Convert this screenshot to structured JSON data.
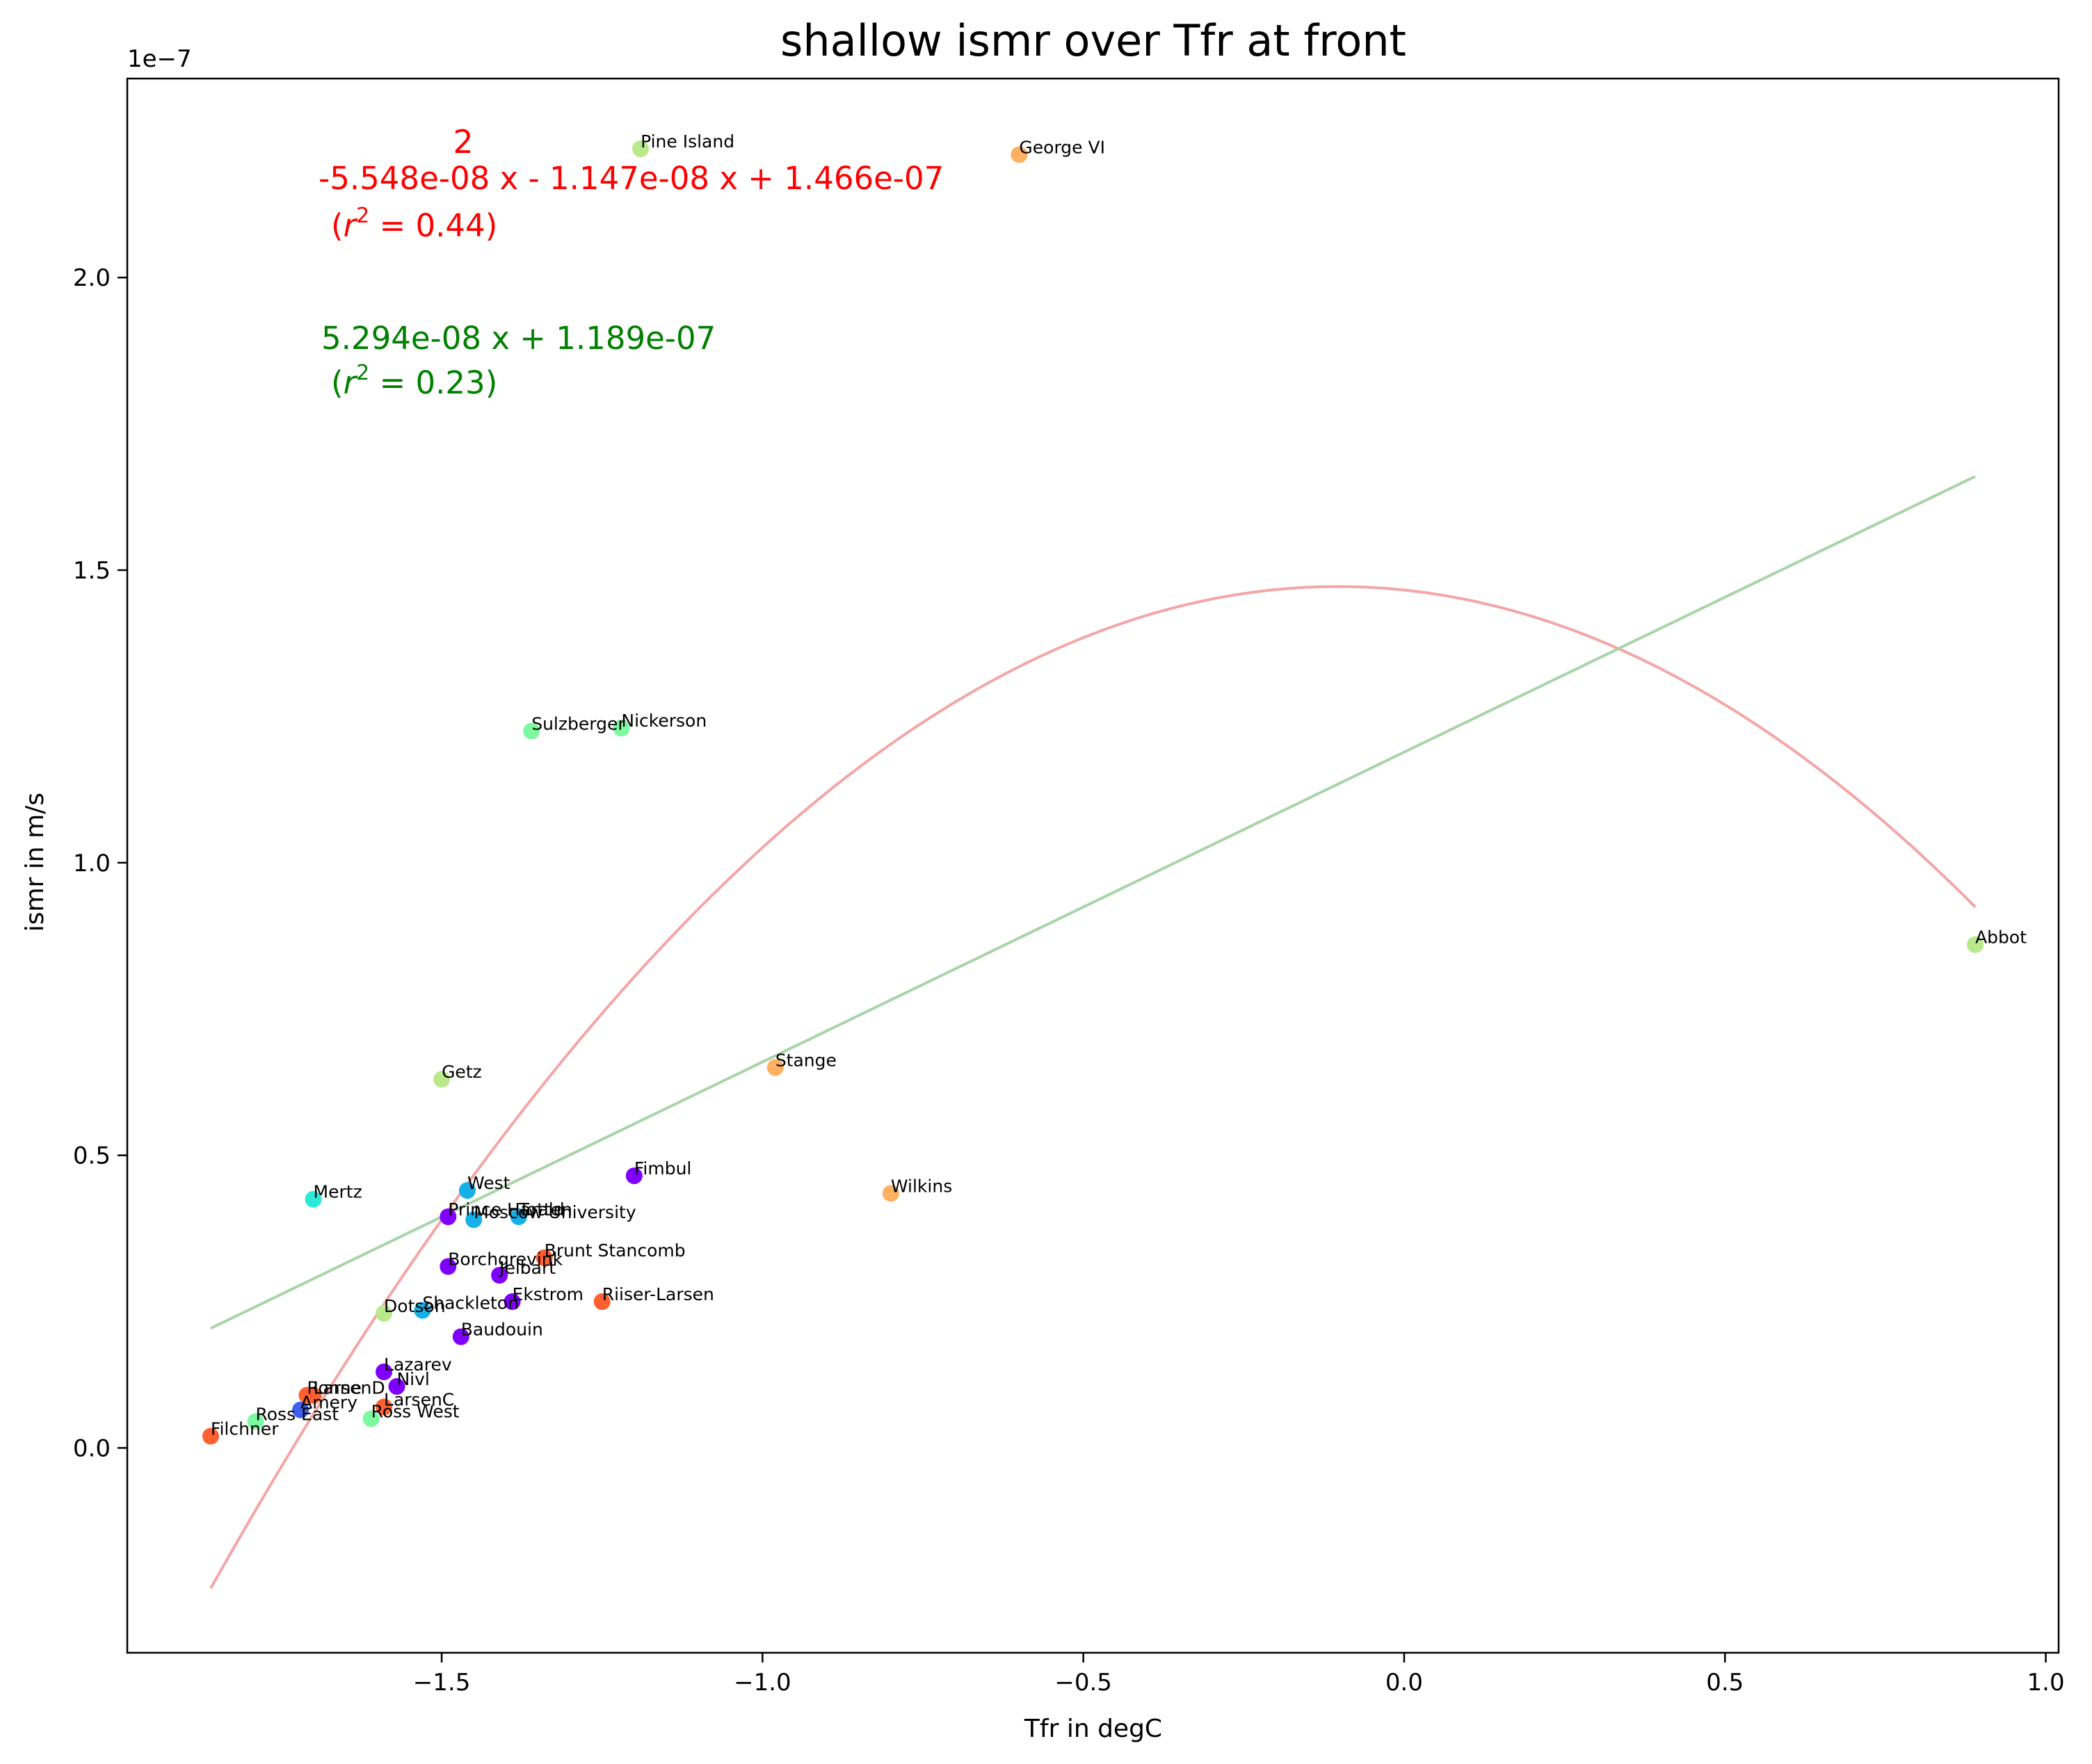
{
  "chart_data": {
    "type": "scatter",
    "title": "shallow ismr over Tfr at front",
    "xlabel": "Tfr in degC",
    "ylabel": "ismr in m/s",
    "y_offset_label": "1e−7",
    "xlim": [
      -1.99,
      1.02
    ],
    "ylim": [
      -0.35,
      2.34
    ],
    "y_scale_note": "values in units of 1e-7 m/s",
    "x_ticks": [
      {
        "value": -1.5,
        "label": "−1.5"
      },
      {
        "value": -1.0,
        "label": "−1.0"
      },
      {
        "value": -0.5,
        "label": "−0.5"
      },
      {
        "value": 0.0,
        "label": "0.0"
      },
      {
        "value": 0.5,
        "label": "0.5"
      },
      {
        "value": 1.0,
        "label": "1.0"
      }
    ],
    "y_ticks": [
      {
        "value": 0.0,
        "label": "0.0"
      },
      {
        "value": 0.5,
        "label": "0.5"
      },
      {
        "value": 1.0,
        "label": "1.0"
      },
      {
        "value": 1.5,
        "label": "1.5"
      },
      {
        "value": 2.0,
        "label": "2.0"
      }
    ],
    "grid": false,
    "points": [
      {
        "name": "Pine Island",
        "x": -1.19,
        "y": 2.22,
        "color": "#b9e98a"
      },
      {
        "name": "George VI",
        "x": -0.6,
        "y": 2.21,
        "color": "#ffb060"
      },
      {
        "name": "Abbot",
        "x": 0.89,
        "y": 0.86,
        "color": "#b9e98a"
      },
      {
        "name": "Sulzberger",
        "x": -1.36,
        "y": 1.225,
        "color": "#7df9a0"
      },
      {
        "name": "Nickerson",
        "x": -1.22,
        "y": 1.23,
        "color": "#7df9a0"
      },
      {
        "name": "Stange",
        "x": -0.98,
        "y": 0.65,
        "color": "#ffb060"
      },
      {
        "name": "Getz",
        "x": -1.5,
        "y": 0.63,
        "color": "#b9e98a"
      },
      {
        "name": "Fimbul",
        "x": -1.2,
        "y": 0.465,
        "color": "#8000ff"
      },
      {
        "name": "Wilkins",
        "x": -0.8,
        "y": 0.435,
        "color": "#ffb060"
      },
      {
        "name": "Mertz",
        "x": -1.7,
        "y": 0.425,
        "color": "#2ee8d8"
      },
      {
        "name": "West",
        "x": -1.46,
        "y": 0.44,
        "color": "#16b0e8"
      },
      {
        "name": "Prince Harald",
        "x": -1.49,
        "y": 0.395,
        "color": "#8000ff"
      },
      {
        "name": "Totten",
        "x": -1.38,
        "y": 0.395,
        "color": "#16b0e8"
      },
      {
        "name": "Moscow University",
        "x": -1.45,
        "y": 0.39,
        "color": "#16b0e8"
      },
      {
        "name": "Borchgrevink",
        "x": -1.49,
        "y": 0.31,
        "color": "#8000ff"
      },
      {
        "name": "Brunt Stancomb",
        "x": -1.34,
        "y": 0.325,
        "color": "#ff6030"
      },
      {
        "name": "Jelbart",
        "x": -1.41,
        "y": 0.295,
        "color": "#8000ff"
      },
      {
        "name": "Riiser-Larsen",
        "x": -1.25,
        "y": 0.25,
        "color": "#ff6030"
      },
      {
        "name": "Ekstrom",
        "x": -1.39,
        "y": 0.25,
        "color": "#8000ff"
      },
      {
        "name": "Shackleton",
        "x": -1.53,
        "y": 0.235,
        "color": "#16b0e8"
      },
      {
        "name": "Dotson",
        "x": -1.59,
        "y": 0.23,
        "color": "#b9e98a"
      },
      {
        "name": "Baudouin",
        "x": -1.47,
        "y": 0.19,
        "color": "#8000ff"
      },
      {
        "name": "Lazarev",
        "x": -1.59,
        "y": 0.13,
        "color": "#8000ff"
      },
      {
        "name": "Nivl",
        "x": -1.57,
        "y": 0.105,
        "color": "#8000ff"
      },
      {
        "name": "LarsenD",
        "x": -1.7,
        "y": 0.09,
        "color": "#ff6030"
      },
      {
        "name": "Ronne",
        "x": -1.71,
        "y": 0.09,
        "color": "#ff6030"
      },
      {
        "name": "LarsenC",
        "x": -1.59,
        "y": 0.07,
        "color": "#ff6030"
      },
      {
        "name": "Amery",
        "x": -1.72,
        "y": 0.065,
        "color": "#4060f0"
      },
      {
        "name": "Ross East",
        "x": -1.79,
        "y": 0.045,
        "color": "#7df9a0"
      },
      {
        "name": "Ross West",
        "x": -1.61,
        "y": 0.05,
        "color": "#7df9a0"
      },
      {
        "name": "Filchner",
        "x": -1.86,
        "y": 0.02,
        "color": "#ff6030"
      }
    ],
    "fits": [
      {
        "kind": "quadratic",
        "coefficients_scaled": [
          -0.5548,
          -0.1147,
          1.466
        ],
        "x_range": [
          -1.86,
          0.89
        ],
        "color": "#ff0000",
        "line_color": "#f4a6a6",
        "exponent_label": "2",
        "equation": "-5.548e-08 x - 1.147e-08 x + 1.466e-07",
        "r2": "= 0.44)"
      },
      {
        "kind": "linear",
        "coefficients_scaled": [
          0.5294,
          1.189
        ],
        "x_range": [
          -1.86,
          0.89
        ],
        "color": "#008000",
        "line_color": "#a8d4a8",
        "equation": "5.294e-08 x + 1.189e-07",
        "r2": "= 0.23)"
      }
    ]
  }
}
